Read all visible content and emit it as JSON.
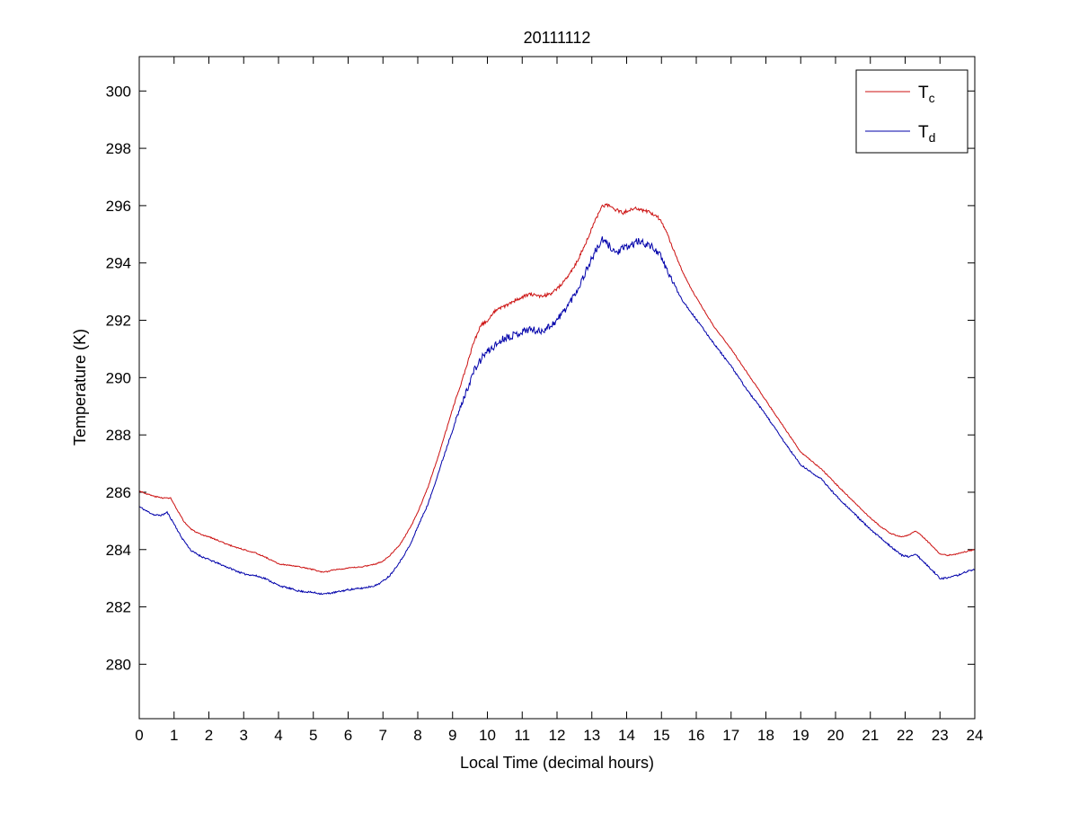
{
  "chart_data": {
    "type": "line",
    "title": "20111112",
    "xlabel": "Local Time (decimal hours)",
    "ylabel": "Temperature (K)",
    "xlim": [
      0,
      24
    ],
    "ylim": [
      278.1,
      301.2
    ],
    "xticks": [
      0,
      1,
      2,
      3,
      4,
      5,
      6,
      7,
      8,
      9,
      10,
      11,
      12,
      13,
      14,
      15,
      16,
      17,
      18,
      19,
      20,
      21,
      22,
      23,
      24
    ],
    "yticks": [
      280,
      282,
      284,
      286,
      288,
      290,
      292,
      294,
      296,
      298,
      300
    ],
    "grid": false,
    "legend_position": "top-right",
    "series": [
      {
        "name": "T_c",
        "label_main": "T",
        "label_sub": "c",
        "color": "#cc1111",
        "noise_base": 0.02,
        "noise_day": 0.06,
        "seed": 3,
        "points": [
          [
            0,
            286.05
          ],
          [
            0.2,
            285.95
          ],
          [
            0.45,
            285.85
          ],
          [
            0.7,
            285.8
          ],
          [
            0.9,
            285.8
          ],
          [
            1.1,
            285.35
          ],
          [
            1.3,
            284.95
          ],
          [
            1.5,
            284.7
          ],
          [
            1.8,
            284.5
          ],
          [
            2,
            284.45
          ],
          [
            2.3,
            284.3
          ],
          [
            2.6,
            284.15
          ],
          [
            3,
            284.0
          ],
          [
            3.3,
            283.9
          ],
          [
            3.6,
            283.75
          ],
          [
            4,
            283.5
          ],
          [
            4.3,
            283.45
          ],
          [
            4.6,
            283.4
          ],
          [
            5,
            283.3
          ],
          [
            5.3,
            283.2
          ],
          [
            5.6,
            283.3
          ],
          [
            6,
            283.35
          ],
          [
            6.4,
            283.4
          ],
          [
            6.8,
            283.5
          ],
          [
            7,
            283.6
          ],
          [
            7.2,
            283.8
          ],
          [
            7.5,
            284.2
          ],
          [
            7.8,
            284.8
          ],
          [
            8,
            285.3
          ],
          [
            8.3,
            286.2
          ],
          [
            8.6,
            287.3
          ],
          [
            9,
            288.9
          ],
          [
            9.3,
            290.0
          ],
          [
            9.6,
            291.2
          ],
          [
            9.8,
            291.8
          ],
          [
            10,
            292.0
          ],
          [
            10.2,
            292.3
          ],
          [
            10.5,
            292.5
          ],
          [
            10.8,
            292.7
          ],
          [
            11,
            292.8
          ],
          [
            11.2,
            292.9
          ],
          [
            11.5,
            292.85
          ],
          [
            11.8,
            292.9
          ],
          [
            12,
            293.1
          ],
          [
            12.3,
            293.5
          ],
          [
            12.6,
            294.1
          ],
          [
            12.9,
            294.9
          ],
          [
            13.1,
            295.5
          ],
          [
            13.3,
            296.0
          ],
          [
            13.5,
            296.0
          ],
          [
            13.7,
            295.85
          ],
          [
            13.9,
            295.75
          ],
          [
            14.1,
            295.85
          ],
          [
            14.3,
            295.9
          ],
          [
            14.6,
            295.8
          ],
          [
            14.9,
            295.6
          ],
          [
            15.1,
            295.2
          ],
          [
            15.3,
            294.6
          ],
          [
            15.6,
            293.7
          ],
          [
            15.9,
            293.0
          ],
          [
            16.2,
            292.4
          ],
          [
            16.5,
            291.8
          ],
          [
            17,
            291.0
          ],
          [
            17.5,
            290.1
          ],
          [
            18,
            289.2
          ],
          [
            18.5,
            288.3
          ],
          [
            19,
            287.4
          ],
          [
            19.3,
            287.1
          ],
          [
            19.6,
            286.8
          ],
          [
            20,
            286.3
          ],
          [
            20.5,
            285.7
          ],
          [
            21,
            285.1
          ],
          [
            21.3,
            284.8
          ],
          [
            21.6,
            284.55
          ],
          [
            21.9,
            284.45
          ],
          [
            22.1,
            284.5
          ],
          [
            22.3,
            284.65
          ],
          [
            22.5,
            284.45
          ],
          [
            22.8,
            284.1
          ],
          [
            23,
            283.85
          ],
          [
            23.2,
            283.8
          ],
          [
            23.5,
            283.85
          ],
          [
            23.8,
            283.95
          ],
          [
            24,
            284.0
          ]
        ]
      },
      {
        "name": "T_d",
        "label_main": "T",
        "label_sub": "d",
        "color": "#0000aa",
        "noise_base": 0.03,
        "noise_day": 0.13,
        "seed": 11,
        "points": [
          [
            0,
            285.5
          ],
          [
            0.2,
            285.35
          ],
          [
            0.45,
            285.2
          ],
          [
            0.65,
            285.2
          ],
          [
            0.8,
            285.3
          ],
          [
            1,
            284.9
          ],
          [
            1.2,
            284.45
          ],
          [
            1.5,
            283.95
          ],
          [
            1.8,
            283.75
          ],
          [
            2,
            283.65
          ],
          [
            2.3,
            283.5
          ],
          [
            2.6,
            283.35
          ],
          [
            3,
            283.15
          ],
          [
            3.3,
            283.1
          ],
          [
            3.6,
            283.0
          ],
          [
            4,
            282.75
          ],
          [
            4.3,
            282.65
          ],
          [
            4.6,
            282.55
          ],
          [
            5,
            282.5
          ],
          [
            5.3,
            282.45
          ],
          [
            5.6,
            282.5
          ],
          [
            6,
            282.6
          ],
          [
            6.4,
            282.65
          ],
          [
            6.8,
            282.75
          ],
          [
            7,
            282.9
          ],
          [
            7.2,
            283.1
          ],
          [
            7.5,
            283.6
          ],
          [
            7.8,
            284.2
          ],
          [
            8,
            284.8
          ],
          [
            8.3,
            285.6
          ],
          [
            8.6,
            286.7
          ],
          [
            9,
            288.2
          ],
          [
            9.3,
            289.2
          ],
          [
            9.6,
            290.2
          ],
          [
            9.9,
            290.8
          ],
          [
            10.2,
            291.1
          ],
          [
            10.5,
            291.4
          ],
          [
            10.8,
            291.5
          ],
          [
            11,
            291.6
          ],
          [
            11.2,
            291.7
          ],
          [
            11.5,
            291.6
          ],
          [
            11.8,
            291.8
          ],
          [
            12,
            292.0
          ],
          [
            12.3,
            292.5
          ],
          [
            12.6,
            293.1
          ],
          [
            12.9,
            293.9
          ],
          [
            13.1,
            294.4
          ],
          [
            13.3,
            294.8
          ],
          [
            13.5,
            294.6
          ],
          [
            13.7,
            294.35
          ],
          [
            13.9,
            294.5
          ],
          [
            14.1,
            294.6
          ],
          [
            14.3,
            294.75
          ],
          [
            14.6,
            294.65
          ],
          [
            14.9,
            294.4
          ],
          [
            15.1,
            293.9
          ],
          [
            15.3,
            293.4
          ],
          [
            15.6,
            292.7
          ],
          [
            15.9,
            292.2
          ],
          [
            16.2,
            291.7
          ],
          [
            16.5,
            291.2
          ],
          [
            17,
            290.4
          ],
          [
            17.5,
            289.5
          ],
          [
            18,
            288.7
          ],
          [
            18.5,
            287.8
          ],
          [
            19,
            286.95
          ],
          [
            19.3,
            286.7
          ],
          [
            19.6,
            286.45
          ],
          [
            20,
            285.9
          ],
          [
            20.5,
            285.3
          ],
          [
            21,
            284.7
          ],
          [
            21.3,
            284.4
          ],
          [
            21.6,
            284.1
          ],
          [
            21.9,
            283.8
          ],
          [
            22.1,
            283.75
          ],
          [
            22.3,
            283.85
          ],
          [
            22.5,
            283.6
          ],
          [
            22.8,
            283.25
          ],
          [
            23,
            283.0
          ],
          [
            23.2,
            283.0
          ],
          [
            23.5,
            283.1
          ],
          [
            23.8,
            283.25
          ],
          [
            24,
            283.3
          ]
        ]
      }
    ]
  }
}
